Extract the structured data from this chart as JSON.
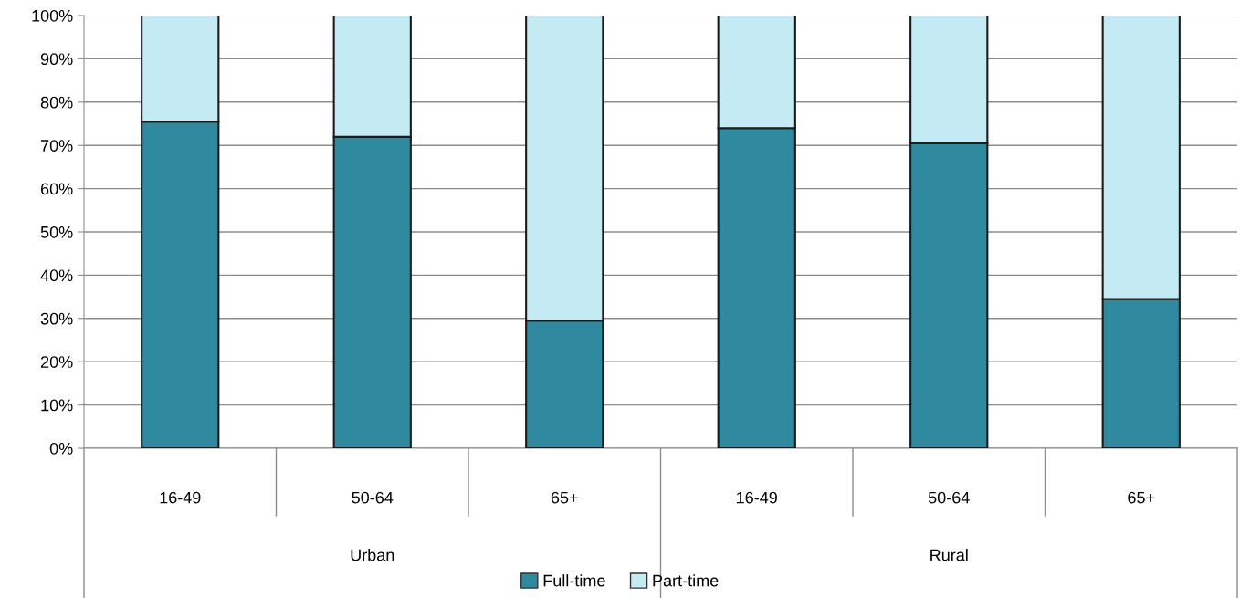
{
  "chart_data": {
    "type": "bar",
    "stacked": true,
    "categories": [
      "16-49",
      "50-64",
      "65+",
      "16-49",
      "50-64",
      "65+"
    ],
    "series": [
      {
        "name": "Full-time",
        "color": "#2f8aa0",
        "values": [
          75.5,
          72,
          29.5,
          74,
          70.5,
          34.5
        ]
      },
      {
        "name": "Part-time",
        "color": "#c4eaf4",
        "values": [
          24.5,
          28,
          70.5,
          26,
          29.5,
          65.5
        ]
      }
    ],
    "annotations": [
      "Urban",
      "Rural"
    ],
    "ylim": [
      0,
      100
    ],
    "yticks": [
      {
        "value": 0,
        "label": "0%"
      },
      {
        "value": 10,
        "label": "10%"
      },
      {
        "value": 20,
        "label": "20%"
      },
      {
        "value": 30,
        "label": "30%"
      },
      {
        "value": 40,
        "label": "40%"
      },
      {
        "value": 50,
        "label": "50%"
      },
      {
        "value": 60,
        "label": "60%"
      },
      {
        "value": 70,
        "label": "70%"
      },
      {
        "value": 80,
        "label": "80%"
      },
      {
        "value": 90,
        "label": "90%"
      },
      {
        "value": 100,
        "label": "100%"
      }
    ],
    "grid": "y",
    "legend": "bottom"
  }
}
